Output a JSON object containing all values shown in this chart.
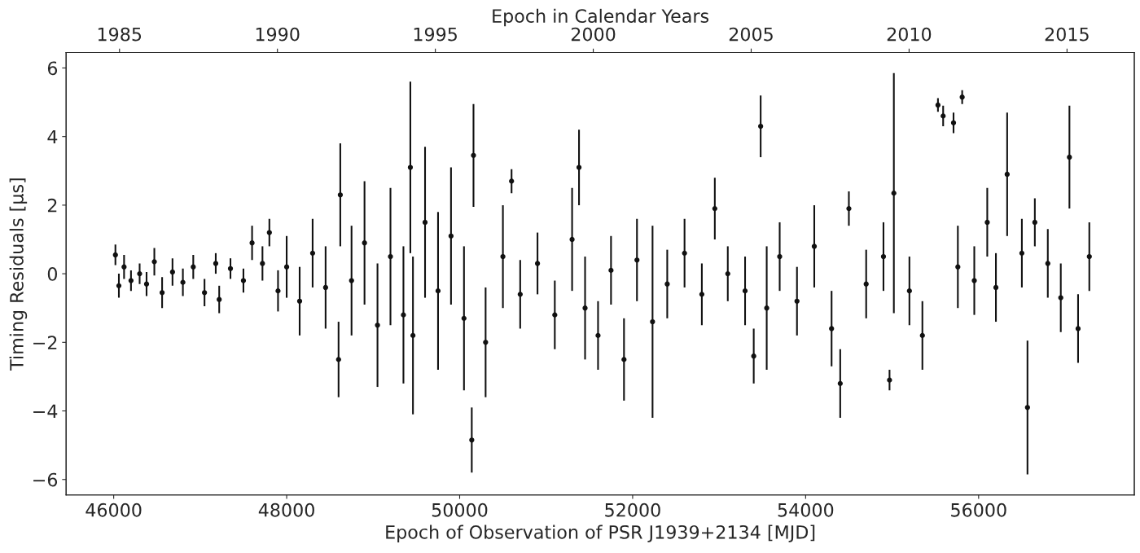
{
  "chart_data": {
    "type": "scatter",
    "xlabel": "Epoch of Observation of PSR J1939+2134 [MJD]",
    "ylabel": "Timing Residuals [μs]",
    "x2label": "Epoch in Calendar Years",
    "xlim": [
      45450,
      57800
    ],
    "xticks": [
      46000,
      48000,
      50000,
      52000,
      54000,
      56000
    ],
    "x2lim": [
      1983.31,
      2017.13
    ],
    "x2ticks": [
      1985,
      1990,
      1995,
      2000,
      2005,
      2010,
      2015
    ],
    "ylim": [
      -6.45,
      6.45
    ],
    "yticks": [
      {
        "value": -6,
        "label": "−6"
      },
      {
        "value": -4,
        "label": "−4"
      },
      {
        "value": -2,
        "label": "−2"
      },
      0,
      2,
      4,
      6
    ],
    "grid": false,
    "legend": false,
    "marker": "circle",
    "series": [
      {
        "color": "#111111",
        "x": [
          46020,
          46060,
          46120,
          46200,
          46300,
          46380,
          46470,
          46560,
          46680,
          46800,
          46920,
          47050,
          47180,
          47220,
          47350,
          47500,
          47600,
          47720,
          47800,
          47900,
          48000,
          48150,
          48300,
          48450,
          48600,
          48620,
          48750,
          48900,
          49050,
          49200,
          49350,
          49430,
          49460,
          49600,
          49750,
          49900,
          50050,
          50140,
          50160,
          50300,
          50500,
          50600,
          50700,
          50900,
          51100,
          51300,
          51380,
          51450,
          51600,
          51750,
          51900,
          52050,
          52230,
          52400,
          52600,
          52800,
          52950,
          53100,
          53300,
          53400,
          53480,
          53550,
          53700,
          53900,
          54100,
          54300,
          54400,
          54500,
          54700,
          54900,
          54970,
          55020,
          55200,
          55350,
          55530,
          55590,
          55710,
          55760,
          55810,
          55950,
          56100,
          56200,
          56330,
          56500,
          56565,
          56650,
          56800,
          56950,
          57050,
          57150,
          57280
        ],
        "values": [
          0.55,
          -0.35,
          0.2,
          -0.2,
          0.0,
          -0.3,
          0.35,
          -0.55,
          0.05,
          -0.25,
          0.2,
          -0.55,
          0.3,
          -0.75,
          0.15,
          -0.2,
          0.9,
          0.3,
          1.2,
          -0.5,
          0.2,
          -0.8,
          0.6,
          -0.4,
          -2.5,
          2.3,
          -0.2,
          0.9,
          -1.5,
          0.5,
          -1.2,
          3.1,
          -1.8,
          1.5,
          -0.5,
          1.1,
          -1.3,
          -4.85,
          3.45,
          -2.0,
          0.5,
          2.7,
          -0.6,
          0.3,
          -1.2,
          1.0,
          3.1,
          -1.0,
          -1.8,
          0.1,
          -2.5,
          0.4,
          -1.4,
          -0.3,
          0.6,
          -0.6,
          1.9,
          0.0,
          -0.5,
          -2.4,
          4.3,
          -1.0,
          0.5,
          -0.8,
          0.8,
          -1.6,
          -3.2,
          1.9,
          -0.3,
          0.5,
          -3.1,
          2.35,
          -0.5,
          -1.8,
          4.92,
          4.6,
          4.4,
          0.2,
          5.15,
          -0.2,
          1.5,
          -0.4,
          2.9,
          0.6,
          -3.9,
          1.5,
          0.3,
          -0.7,
          3.4,
          -1.6,
          0.5
        ],
        "errors": [
          0.3,
          0.35,
          0.35,
          0.3,
          0.3,
          0.35,
          0.4,
          0.45,
          0.4,
          0.4,
          0.35,
          0.4,
          0.3,
          0.4,
          0.3,
          0.35,
          0.5,
          0.5,
          0.4,
          0.6,
          0.9,
          1.0,
          1.0,
          1.2,
          1.1,
          1.5,
          1.6,
          1.8,
          1.8,
          2.0,
          2.0,
          2.5,
          2.3,
          2.2,
          2.3,
          2.0,
          2.1,
          0.95,
          1.5,
          1.6,
          1.5,
          0.35,
          1.0,
          0.9,
          1.0,
          1.5,
          1.1,
          1.5,
          1.0,
          1.0,
          1.2,
          1.2,
          2.8,
          1.0,
          1.0,
          0.9,
          0.9,
          0.8,
          1.0,
          0.8,
          0.9,
          1.8,
          1.0,
          1.0,
          1.2,
          1.1,
          1.0,
          0.5,
          1.0,
          1.0,
          0.3,
          3.5,
          1.0,
          1.0,
          0.2,
          0.3,
          0.3,
          1.2,
          0.2,
          1.0,
          1.0,
          1.0,
          1.8,
          1.0,
          1.95,
          0.7,
          1.0,
          1.0,
          1.5,
          1.0,
          1.0
        ]
      }
    ]
  }
}
